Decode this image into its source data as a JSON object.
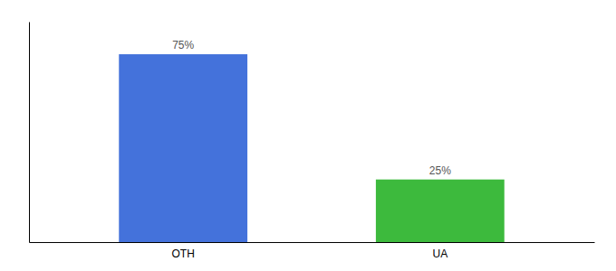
{
  "chart_data": {
    "type": "bar",
    "categories": [
      "OTH",
      "UA"
    ],
    "values": [
      75,
      25
    ],
    "value_labels": [
      "75%",
      "25%"
    ],
    "colors": [
      "#4472db",
      "#3dba3d"
    ],
    "ylim": [
      0,
      88
    ],
    "data_labels": true,
    "tick_labels": "x",
    "grid": false
  }
}
